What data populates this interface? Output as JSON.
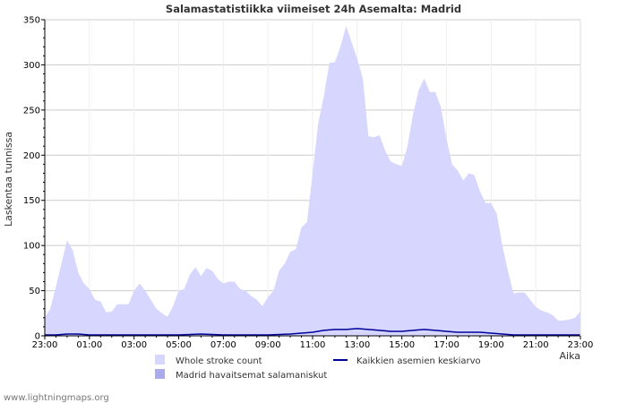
{
  "chart_data": {
    "type": "area",
    "title": "Salamastatistiikka viimeiset 24h Asemalta: Madrid",
    "ylabel": "Laskentaa tunnissa",
    "xlabel": "Aika",
    "ylim": [
      0,
      350
    ],
    "yticks": [
      0,
      50,
      100,
      150,
      200,
      250,
      300,
      350
    ],
    "xrange_hours": [
      0,
      24
    ],
    "xticks": [
      {
        "h": 0,
        "label": "23:00"
      },
      {
        "h": 2,
        "label": "01:00"
      },
      {
        "h": 4,
        "label": "03:00"
      },
      {
        "h": 6,
        "label": "05:00"
      },
      {
        "h": 8,
        "label": "07:00"
      },
      {
        "h": 10,
        "label": "09:00"
      },
      {
        "h": 12,
        "label": "11:00"
      },
      {
        "h": 14,
        "label": "13:00"
      },
      {
        "h": 16,
        "label": "15:00"
      },
      {
        "h": 18,
        "label": "17:00"
      },
      {
        "h": 20,
        "label": "19:00"
      },
      {
        "h": 22,
        "label": "21:00"
      },
      {
        "h": 24,
        "label": "23:00"
      }
    ],
    "grid": true,
    "series": [
      {
        "name": "Whole stroke count",
        "style": "area",
        "color": "#d6d6ff",
        "x": [
          0,
          0.25,
          0.5,
          0.75,
          1,
          1.25,
          1.5,
          1.75,
          2,
          2.25,
          2.5,
          2.75,
          3,
          3.25,
          3.5,
          3.75,
          4,
          4.25,
          4.5,
          4.75,
          5,
          5.25,
          5.5,
          5.75,
          6,
          6.25,
          6.5,
          6.75,
          7,
          7.25,
          7.5,
          7.75,
          8,
          8.25,
          8.5,
          8.75,
          9,
          9.25,
          9.5,
          9.75,
          10,
          10.25,
          10.5,
          10.75,
          11,
          11.25,
          11.5,
          11.75,
          12,
          12.25,
          12.5,
          12.75,
          13,
          13.25,
          13.5,
          13.75,
          14,
          14.25,
          14.5,
          14.75,
          15,
          15.25,
          15.5,
          15.75,
          16,
          16.25,
          16.5,
          16.75,
          17,
          17.25,
          17.5,
          17.75,
          18,
          18.25,
          18.5,
          18.75,
          19,
          19.25,
          19.5,
          19.75,
          20,
          20.25,
          20.5,
          20.75,
          21,
          21.25,
          21.5,
          21.75,
          22,
          22.25,
          22.5,
          22.75,
          23,
          23.25,
          23.5,
          23.75,
          24
        ],
        "values": [
          20,
          30,
          55,
          80,
          106,
          95,
          70,
          58,
          52,
          40,
          38,
          26,
          27,
          35,
          35,
          35,
          50,
          58,
          50,
          40,
          30,
          25,
          21,
          33,
          50,
          52,
          68,
          76,
          66,
          75,
          72,
          63,
          58,
          60,
          60,
          52,
          50,
          44,
          40,
          33,
          43,
          50,
          72,
          80,
          93,
          96,
          120,
          126,
          180,
          235,
          265,
          302,
          303,
          320,
          343,
          325,
          307,
          285,
          221,
          220,
          222,
          205,
          193,
          190,
          188,
          210,
          245,
          272,
          285,
          270,
          270,
          253,
          218,
          190,
          183,
          172,
          180,
          178,
          160,
          147,
          147,
          135,
          100,
          72,
          47,
          48,
          48,
          40,
          32,
          28,
          26,
          23,
          17,
          17,
          18,
          20,
          27
        ]
      },
      {
        "name": "Madrid havaitsemat salamaniskut",
        "style": "area",
        "color": "#aaaaee",
        "x": [
          0,
          24
        ],
        "values": [
          0,
          0
        ]
      },
      {
        "name": "Kaikkien asemien keskiarvo",
        "style": "line",
        "color": "#000099",
        "x": [
          0,
          0.5,
          1,
          1.5,
          2,
          3,
          4,
          5,
          6,
          7,
          8,
          9,
          10,
          11,
          11.5,
          12,
          12.5,
          13,
          13.5,
          14,
          14.5,
          15,
          15.5,
          16,
          16.5,
          17,
          17.5,
          18,
          18.5,
          19,
          19.5,
          20,
          20.5,
          21,
          22,
          23,
          24
        ],
        "values": [
          1,
          1,
          2,
          2,
          1,
          1,
          1,
          1,
          1,
          2,
          1,
          1,
          1,
          2,
          3,
          4,
          6,
          7,
          7,
          8,
          7,
          6,
          5,
          5,
          6,
          7,
          6,
          5,
          4,
          4,
          4,
          3,
          2,
          1,
          1,
          1,
          1
        ]
      }
    ]
  },
  "footer": "www.lightningmaps.org"
}
